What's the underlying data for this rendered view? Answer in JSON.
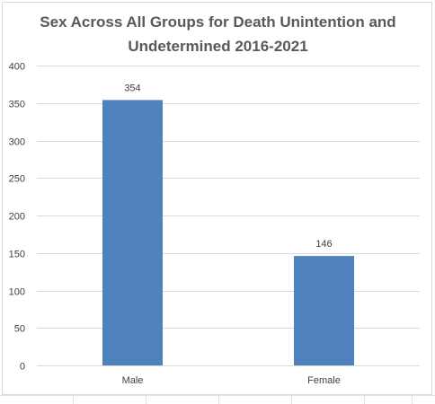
{
  "chart_data": {
    "type": "bar",
    "title_lines": [
      "Sex Across All Groups for Death Unintention and",
      "Undetermined 2016-2021"
    ],
    "categories": [
      "Male",
      "Female"
    ],
    "values": [
      354,
      146
    ],
    "data_labels": [
      "354",
      "146"
    ],
    "y_ticks": [
      0,
      50,
      100,
      150,
      200,
      250,
      300,
      350,
      400
    ],
    "ylim": [
      0,
      400
    ],
    "xlabel": "",
    "ylabel": "",
    "grid": true,
    "legend": "none",
    "bar_color": "#4f81bd",
    "gridline_color": "#d9d9d9",
    "label_color": "#404040"
  }
}
